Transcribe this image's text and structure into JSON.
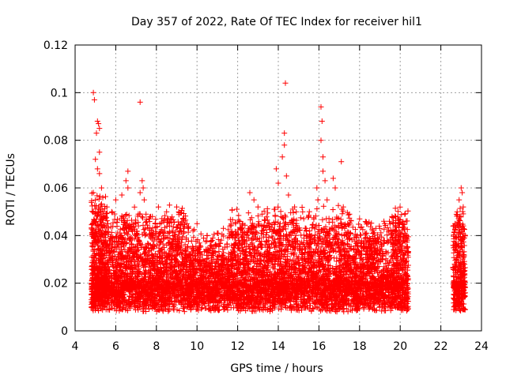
{
  "chart_data": {
    "type": "scatter",
    "title": "Day 357 of 2022, Rate Of TEC Index for receiver hil1",
    "xlabel": "GPS time / hours",
    "ylabel": "ROTI / TECUs",
    "xlim": [
      4,
      24
    ],
    "ylim": [
      0,
      0.12
    ],
    "x_ticks": [
      4,
      6,
      8,
      10,
      12,
      14,
      16,
      18,
      20,
      22,
      24
    ],
    "y_ticks": [
      "0",
      "0.02",
      "0.04",
      "0.06",
      "0.08",
      "0.1",
      "0.12"
    ],
    "grid": true,
    "marker": "+",
    "marker_color": "#ff0000",
    "series": [
      {
        "points": [
          [
            4.9,
            0.1
          ],
          [
            4.95,
            0.097
          ],
          [
            5.1,
            0.088
          ],
          [
            5.15,
            0.087
          ],
          [
            5.2,
            0.085
          ],
          [
            5.05,
            0.083
          ],
          [
            5.2,
            0.075
          ],
          [
            5.0,
            0.072
          ],
          [
            5.1,
            0.068
          ],
          [
            5.2,
            0.066
          ],
          [
            4.9,
            0.058
          ],
          [
            5.3,
            0.06
          ],
          [
            6.6,
            0.067
          ],
          [
            6.5,
            0.063
          ],
          [
            6.6,
            0.06
          ],
          [
            6.3,
            0.057
          ],
          [
            6.0,
            0.055
          ],
          [
            5.8,
            0.05
          ],
          [
            7.2,
            0.096
          ],
          [
            7.3,
            0.063
          ],
          [
            7.35,
            0.06
          ],
          [
            7.2,
            0.058
          ],
          [
            7.4,
            0.055
          ],
          [
            8.1,
            0.052
          ],
          [
            8.5,
            0.05
          ],
          [
            9.0,
            0.052
          ],
          [
            9.1,
            0.05
          ],
          [
            7.8,
            0.048
          ],
          [
            8.7,
            0.047
          ],
          [
            9.5,
            0.045
          ],
          [
            9.8,
            0.042
          ],
          [
            10.0,
            0.045
          ],
          [
            10.5,
            0.04
          ],
          [
            11.0,
            0.041
          ],
          [
            11.3,
            0.043
          ],
          [
            11.9,
            0.045
          ],
          [
            12.1,
            0.046
          ],
          [
            12.6,
            0.058
          ],
          [
            12.8,
            0.055
          ],
          [
            13.0,
            0.052
          ],
          [
            13.2,
            0.049
          ],
          [
            13.8,
            0.051
          ],
          [
            13.9,
            0.068
          ],
          [
            14.0,
            0.062
          ],
          [
            14.2,
            0.073
          ],
          [
            14.3,
            0.083
          ],
          [
            14.3,
            0.078
          ],
          [
            14.35,
            0.104
          ],
          [
            14.4,
            0.065
          ],
          [
            14.5,
            0.057
          ],
          [
            14.8,
            0.052
          ],
          [
            15.2,
            0.05
          ],
          [
            15.5,
            0.048
          ],
          [
            15.9,
            0.06
          ],
          [
            15.95,
            0.055
          ],
          [
            16.1,
            0.094
          ],
          [
            16.15,
            0.088
          ],
          [
            16.1,
            0.08
          ],
          [
            16.2,
            0.073
          ],
          [
            16.2,
            0.067
          ],
          [
            16.3,
            0.063
          ],
          [
            16.4,
            0.055
          ],
          [
            16.7,
            0.064
          ],
          [
            16.8,
            0.06
          ],
          [
            17.1,
            0.071
          ],
          [
            17.2,
            0.052
          ],
          [
            17.5,
            0.049
          ],
          [
            18.0,
            0.047
          ],
          [
            18.4,
            0.045
          ],
          [
            18.8,
            0.043
          ],
          [
            19.2,
            0.046
          ],
          [
            19.6,
            0.048
          ],
          [
            19.9,
            0.047
          ],
          [
            20.1,
            0.045
          ],
          [
            20.2,
            0.043
          ],
          [
            22.7,
            0.045
          ],
          [
            22.8,
            0.05
          ],
          [
            22.9,
            0.055
          ],
          [
            23.0,
            0.06
          ],
          [
            23.05,
            0.058
          ],
          [
            23.1,
            0.052
          ]
        ],
        "bands": [
          {
            "x_range": [
              4.8,
              5.6
            ],
            "y_range": [
              0.005,
              0.05
            ],
            "count": 650
          },
          {
            "x_range": [
              5.6,
              7.6
            ],
            "y_range": [
              0.004,
              0.045
            ],
            "count": 950
          },
          {
            "x_range": [
              7.6,
              9.6
            ],
            "y_range": [
              0.003,
              0.045
            ],
            "count": 950
          },
          {
            "x_range": [
              9.6,
              11.6
            ],
            "y_range": [
              0.003,
              0.035
            ],
            "count": 850
          },
          {
            "x_range": [
              11.6,
              13.6
            ],
            "y_range": [
              0.003,
              0.045
            ],
            "count": 950
          },
          {
            "x_range": [
              13.6,
              15.6
            ],
            "y_range": [
              0.003,
              0.045
            ],
            "count": 950
          },
          {
            "x_range": [
              15.6,
              17.6
            ],
            "y_range": [
              0.002,
              0.045
            ],
            "count": 950
          },
          {
            "x_range": [
              17.6,
              19.6
            ],
            "y_range": [
              0.003,
              0.04
            ],
            "count": 900
          },
          {
            "x_range": [
              19.6,
              20.4
            ],
            "y_range": [
              0.004,
              0.045
            ],
            "count": 450
          },
          {
            "x_range": [
              22.6,
              23.2
            ],
            "y_range": [
              0.003,
              0.045
            ],
            "count": 380
          }
        ]
      }
    ]
  }
}
